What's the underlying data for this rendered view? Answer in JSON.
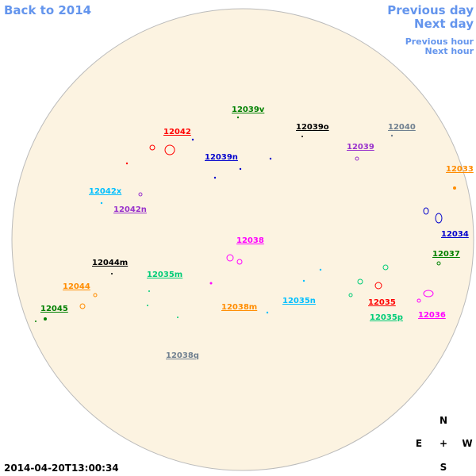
{
  "nav": {
    "back": "Back to 2014",
    "previous_day": "Previous day",
    "next_day": "Next day",
    "previous_hour": "Previous hour",
    "next_hour": "Next hour"
  },
  "timestamp": "2014-04-20T13:00:34",
  "compass": {
    "north": "N",
    "east": "E",
    "center": "+",
    "west": "W",
    "south": "S"
  },
  "regions": [
    {
      "label": "12039v",
      "color": "#008000"
    },
    {
      "label": "12042",
      "color": "#ff0000"
    },
    {
      "label": "12039o",
      "color": "#000000"
    },
    {
      "label": "12040",
      "color": "#708090"
    },
    {
      "label": "12039",
      "color": "#9932cc"
    },
    {
      "label": "12039n",
      "color": "#0000cd"
    },
    {
      "label": "12033",
      "color": "#ff8c00"
    },
    {
      "label": "12042x",
      "color": "#00bfff"
    },
    {
      "label": "12042n",
      "color": "#9932cc"
    },
    {
      "label": "12034",
      "color": "#0000cd"
    },
    {
      "label": "12038",
      "color": "#ff00ff"
    },
    {
      "label": "12037",
      "color": "#008000"
    },
    {
      "label": "12044m",
      "color": "#000000"
    },
    {
      "label": "12035m",
      "color": "#00cc77"
    },
    {
      "label": "12044",
      "color": "#ff8c00"
    },
    {
      "label": "12035n",
      "color": "#00bfff"
    },
    {
      "label": "12035",
      "color": "#ff0000"
    },
    {
      "label": "12038m",
      "color": "#ff8c00"
    },
    {
      "label": "12045",
      "color": "#008000"
    },
    {
      "label": "12036",
      "color": "#ff00ff"
    },
    {
      "label": "12035p",
      "color": "#00cc77"
    },
    {
      "label": "12038q",
      "color": "#708090"
    }
  ]
}
